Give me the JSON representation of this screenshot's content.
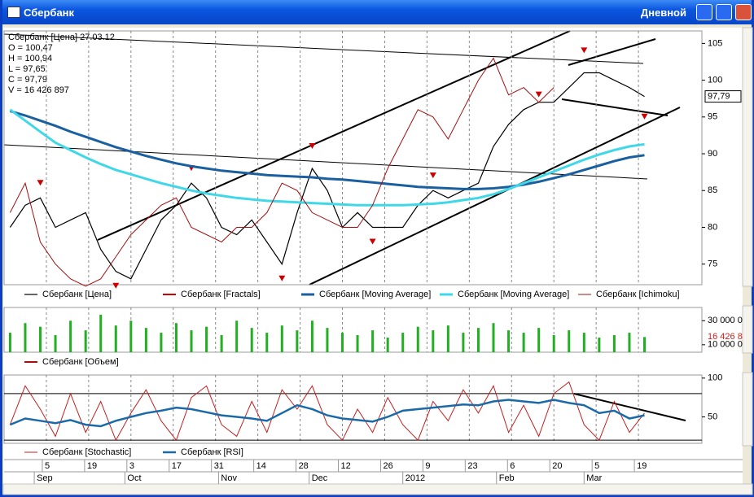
{
  "window": {
    "title": "Сбербанк",
    "period": "Дневной"
  },
  "info": [
    "Сбербанк [Цена] 27.03.12",
    "O = 100,47",
    "H = 100,94",
    "L = 97,65",
    "C = 97,79",
    "V = 16 426 897"
  ],
  "chart_data": [
    {
      "type": "line",
      "price_label": "97,79",
      "x": [
        -8,
        -3,
        2,
        7,
        12,
        17,
        22,
        27,
        32,
        37,
        42,
        47,
        52,
        57,
        62,
        67,
        72,
        77,
        82,
        87,
        92,
        97,
        102,
        107,
        112,
        117,
        122,
        127,
        132,
        137,
        142,
        147,
        152,
        157,
        162,
        167,
        172,
        177,
        182,
        187,
        192,
        197,
        202
      ],
      "xlim": [
        -10,
        221
      ],
      "ylim": [
        72.2,
        106.7
      ],
      "yticks": [
        75,
        80,
        85,
        90,
        95,
        100,
        105
      ],
      "series": [
        {
          "name": "Сбербанк [Цена]",
          "color": "#000000",
          "width": 1.2,
          "values": [
            80,
            83,
            84,
            80,
            81,
            82,
            77,
            74,
            73,
            77,
            81,
            83,
            86,
            84,
            80,
            79,
            81,
            78,
            75,
            82,
            88,
            85,
            80,
            82,
            80,
            80,
            80,
            83,
            85,
            84,
            85,
            86,
            91,
            94,
            96,
            97,
            97,
            99,
            101,
            101,
            100,
            99,
            97.79
          ]
        },
        {
          "name": "Сбербанк [Fractals]",
          "color": "#cc0000",
          "marker": "triangle",
          "values": [
            null,
            null,
            86,
            null,
            null,
            null,
            null,
            72,
            null,
            null,
            null,
            null,
            88,
            null,
            null,
            null,
            null,
            null,
            73,
            null,
            91,
            null,
            null,
            null,
            78,
            null,
            null,
            null,
            87,
            null,
            null,
            null,
            null,
            null,
            null,
            98,
            null,
            null,
            104,
            null,
            null,
            null,
            95
          ]
        },
        {
          "name": "Сбербанк [Moving Average]",
          "color": "#1a5fa0",
          "width": 3,
          "values": [
            95.8,
            95.2,
            94.5,
            93.8,
            93,
            92.3,
            91.6,
            90.9,
            90.3,
            89.7,
            89.2,
            88.7,
            88.3,
            88,
            87.7,
            87.5,
            87.3,
            87.1,
            87,
            86.9,
            86.8,
            86.6,
            86.5,
            86.3,
            86.1,
            85.9,
            85.7,
            85.5,
            85.4,
            85.3,
            85.2,
            85.2,
            85.3,
            85.5,
            85.8,
            86.2,
            86.7,
            87.2,
            87.8,
            88.4,
            89,
            89.5,
            89.8
          ]
        },
        {
          "name": "Сбербанк [Moving Average]",
          "color": "#40d8e8",
          "width": 3,
          "values": [
            96,
            94.5,
            93,
            91.5,
            90.5,
            89.5,
            88.6,
            87.8,
            87.2,
            86.6,
            86,
            85.5,
            85,
            84.6,
            84.3,
            84,
            83.8,
            83.6,
            83.5,
            83.4,
            83.3,
            83.2,
            83.1,
            83,
            83,
            83,
            83,
            83.1,
            83.2,
            83.4,
            83.7,
            84,
            84.5,
            85.2,
            86,
            86.8,
            87.6,
            88.4,
            89.2,
            89.9,
            90.5,
            91,
            91.3
          ]
        },
        {
          "name": "Сбербанк [Ichimoku]",
          "color": "#a01010",
          "width": 1,
          "values": [
            82,
            86,
            78,
            75,
            73,
            72,
            73,
            76,
            79,
            81,
            83,
            84,
            80,
            79,
            78,
            80,
            80,
            82,
            86,
            85,
            82,
            81,
            80,
            80,
            83,
            88,
            92,
            96,
            95,
            92,
            96,
            100,
            103,
            98,
            99,
            97,
            99,
            null,
            null,
            null,
            null,
            null,
            null
          ]
        }
      ]
    },
    {
      "type": "bar",
      "value_label": "16 426 8",
      "x": [
        -8,
        -3,
        2,
        7,
        12,
        17,
        22,
        27,
        32,
        37,
        42,
        47,
        52,
        57,
        62,
        67,
        72,
        77,
        82,
        87,
        92,
        97,
        102,
        107,
        112,
        117,
        122,
        127,
        132,
        137,
        142,
        147,
        152,
        157,
        162,
        167,
        172,
        177,
        182,
        187,
        192,
        197,
        202
      ],
      "xlim": [
        -10,
        221
      ],
      "ylim": [
        3800000,
        41000000
      ],
      "yticks": [
        {
          "value": 30000000,
          "label": "30 000 0"
        },
        {
          "value": 10000000,
          "label": "10 000 0"
        }
      ],
      "series": [
        {
          "name": "Сбербанк [Объем]",
          "color": "#22b022",
          "values": [
            20000000,
            28000000,
            25000000,
            18000000,
            30000000,
            22000000,
            35000000,
            26000000,
            30000000,
            24000000,
            20000000,
            28000000,
            22000000,
            25000000,
            18000000,
            30000000,
            24000000,
            20000000,
            26000000,
            22000000,
            30000000,
            24000000,
            20000000,
            18000000,
            22000000,
            16000000,
            20000000,
            25000000,
            22000000,
            26000000,
            20000000,
            24000000,
            28000000,
            22000000,
            20000000,
            24000000,
            18000000,
            22000000,
            20000000,
            16000000,
            18000000,
            20000000,
            16426897
          ]
        }
      ],
      "legend_color": "#a01010"
    },
    {
      "type": "line",
      "x": [
        -8,
        -3,
        2,
        7,
        12,
        17,
        22,
        27,
        32,
        37,
        42,
        47,
        52,
        57,
        62,
        67,
        72,
        77,
        82,
        87,
        92,
        97,
        102,
        107,
        112,
        117,
        122,
        127,
        132,
        137,
        142,
        147,
        152,
        157,
        162,
        167,
        172,
        177,
        182,
        187,
        192,
        197,
        202
      ],
      "xlim": [
        -10,
        221
      ],
      "ylim": [
        16,
        104
      ],
      "yticks": [
        100,
        50
      ],
      "levels": [
        80,
        20
      ],
      "series": [
        {
          "name": "Сбербанк [Stochastic]",
          "color": "#c02020",
          "width": 1,
          "values": [
            40,
            90,
            60,
            25,
            80,
            30,
            70,
            20,
            55,
            85,
            45,
            20,
            75,
            90,
            40,
            25,
            70,
            30,
            85,
            60,
            90,
            40,
            20,
            60,
            30,
            75,
            40,
            20,
            70,
            45,
            85,
            55,
            90,
            30,
            65,
            25,
            80,
            95,
            40,
            20,
            70,
            30,
            55
          ]
        },
        {
          "name": "Сбербанк [RSI]",
          "color": "#1a6aa8",
          "width": 2.5,
          "values": [
            40,
            48,
            45,
            42,
            46,
            40,
            38,
            45,
            50,
            55,
            58,
            62,
            60,
            56,
            52,
            50,
            48,
            45,
            55,
            65,
            60,
            52,
            48,
            46,
            44,
            50,
            58,
            60,
            62,
            64,
            66,
            65,
            70,
            72,
            70,
            68,
            72,
            68,
            65,
            55,
            58,
            48,
            52
          ]
        }
      ],
      "xticks": [
        {
          "value": 4,
          "label": "5"
        },
        {
          "value": 18,
          "label": "19"
        },
        {
          "value": 32,
          "label": "3"
        },
        {
          "value": 46,
          "label": "17"
        },
        {
          "value": 60,
          "label": "31"
        },
        {
          "value": 74,
          "label": "14"
        },
        {
          "value": 88,
          "label": "28"
        },
        {
          "value": 102,
          "label": "12"
        },
        {
          "value": 116,
          "label": "26"
        },
        {
          "value": 130,
          "label": "9"
        },
        {
          "value": 144,
          "label": "23"
        },
        {
          "value": 158,
          "label": "6"
        },
        {
          "value": 172,
          "label": "20"
        },
        {
          "value": 186,
          "label": "5"
        },
        {
          "value": 200,
          "label": "19"
        }
      ],
      "month_ticks": [
        {
          "value": 0,
          "label": "Sep"
        },
        {
          "value": 30,
          "label": "Oct"
        },
        {
          "value": 61,
          "label": "Nov"
        },
        {
          "value": 91,
          "label": "Dec"
        },
        {
          "value": 122,
          "label": "2012"
        },
        {
          "value": 153,
          "label": "Feb"
        },
        {
          "value": 182,
          "label": "Mar"
        }
      ]
    }
  ]
}
